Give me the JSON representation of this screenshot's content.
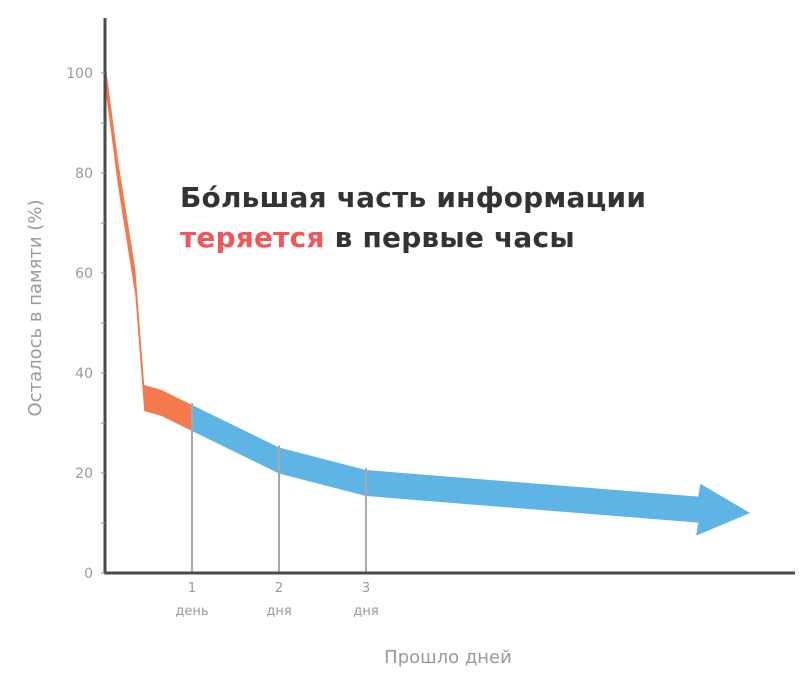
{
  "headline": {
    "line1": "Бóльшая часть информации",
    "line2_accent": "теряется",
    "line2_rest": " в первые часы"
  },
  "colors": {
    "accent_text": "#f2555a",
    "early_curve": "#f47a4e",
    "late_curve": "#5fb4e6",
    "axis": "#4a4a4a",
    "label": "#9a9a9a"
  },
  "chart_data": {
    "type": "area",
    "title": "Бóльшая часть информации теряется в первые часы",
    "xlabel": "Прошло дней",
    "ylabel": "Осталось в памяти (%)",
    "ylim": [
      0,
      100
    ],
    "xlim": [
      0,
      7.3
    ],
    "y_ticks": [
      "0",
      "20",
      "40",
      "60",
      "80",
      "100"
    ],
    "x_ticks": [
      {
        "x": 1,
        "number": "1",
        "unit": "день"
      },
      {
        "x": 2,
        "number": "2",
        "unit": "дня"
      },
      {
        "x": 3,
        "number": "3",
        "unit": "дня"
      }
    ],
    "series": [
      {
        "color": "#f47a4e",
        "x": [
          0,
          0.15,
          0.35,
          0.45,
          0.65,
          1.0
        ],
        "y": [
          100,
          80,
          58,
          35,
          34,
          31
        ]
      },
      {
        "color": "#5fb4e6",
        "x": [
          1.0,
          2.0,
          3.0,
          7.3
        ],
        "y": [
          31,
          22.5,
          18,
          12
        ]
      }
    ],
    "grid": false,
    "arrow_at_end": true
  }
}
